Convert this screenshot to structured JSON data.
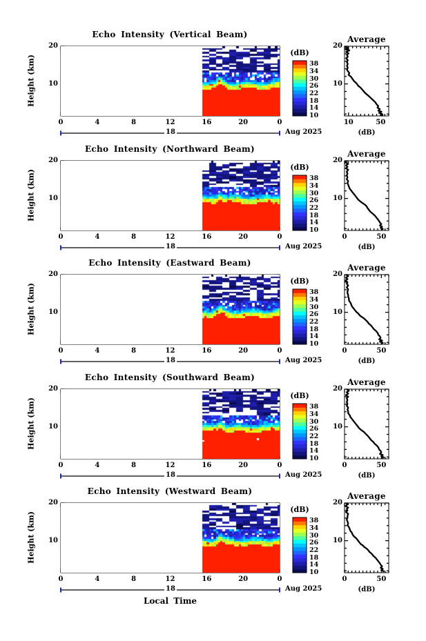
{
  "figure_bg": "#ffffff",
  "axis_color": "#000000",
  "date_bar_accent": "#2222cc",
  "shared": {
    "x_axis_label": "Local Time",
    "x_tick_labels": [
      "0",
      "4",
      "8",
      "12",
      "16",
      "20",
      "0"
    ],
    "x_tick_hours": [
      0,
      4,
      8,
      12,
      16,
      20,
      24
    ],
    "x_range_hours": [
      0,
      24
    ],
    "y_axis_label": "Height (km)",
    "y_tick_labels": [
      "20",
      "10"
    ],
    "y_range_km": [
      1.5,
      20
    ],
    "date_day_label": "18",
    "date_month_year": "Aug 2025",
    "colorbar": {
      "title": "(dB)",
      "tick_labels": [
        "38",
        "34",
        "30",
        "26",
        "22",
        "18",
        "14",
        "10"
      ],
      "tick_values": [
        38,
        34,
        30,
        26,
        22,
        18,
        14,
        10
      ],
      "range_db": [
        10,
        40
      ],
      "palette_bottom_to_top": [
        "#0a0a50",
        "#14147d",
        "#1e1eaa",
        "#2828d7",
        "#3232ff",
        "#1e64ff",
        "#0096ff",
        "#00c8ff",
        "#00ffff",
        "#50ff9b",
        "#a0ff50",
        "#e6ff1e",
        "#ffd200",
        "#ff7800",
        "#ff2000"
      ]
    },
    "average": {
      "title": "Average",
      "xlabel": "(dB)",
      "y_tick_labels": [
        "20",
        "10"
      ]
    }
  },
  "chart_data": [
    {
      "type": "heatmap",
      "title": "Echo Intensity (Vertical Beam)",
      "beam": "vertical",
      "heatmap_summary": {
        "no_data_before_hour": 15.5,
        "data_hours": [
          15.5,
          24
        ],
        "solid_red_below_km": 8.7,
        "red_boundary_bump": {
          "hour": 17.4,
          "peak_km": 10.0
        },
        "transition_band_km": [
          8.7,
          10.6
        ],
        "dark_speckle_band_km": [
          10.6,
          19.0
        ],
        "mostly_clear_above_km": 19.0,
        "min_db": 10,
        "max_db": 38
      },
      "average_profile": {
        "title": "Average",
        "xlabel": "(dB)",
        "x_range_db": [
          5,
          60
        ],
        "x_tick_values": [
          10,
          50
        ],
        "x_tick_labels": [
          "10",
          "50"
        ],
        "offscale_left_arrow_at_top": true,
        "points_db_km": [
          [
            4,
            20
          ],
          [
            9,
            19.6
          ],
          [
            6,
            19.2
          ],
          [
            11,
            18.9
          ],
          [
            7,
            18.5
          ],
          [
            10,
            18.1
          ],
          [
            8,
            17.7
          ],
          [
            9,
            17.2
          ],
          [
            7,
            16.8
          ],
          [
            9,
            16.3
          ],
          [
            8,
            15.8
          ],
          [
            9,
            15.3
          ],
          [
            8,
            14.8
          ],
          [
            9,
            14.3
          ],
          [
            8,
            13.8
          ],
          [
            9,
            13.4
          ],
          [
            11,
            12.9
          ],
          [
            10,
            12.4
          ],
          [
            13,
            11.9
          ],
          [
            15,
            11.3
          ],
          [
            17,
            10.7
          ],
          [
            20,
            10.1
          ],
          [
            22,
            9.5
          ],
          [
            25,
            9.0
          ],
          [
            27,
            8.5
          ],
          [
            29,
            8.0
          ],
          [
            31,
            7.5
          ],
          [
            34,
            7.0
          ],
          [
            37,
            6.4
          ],
          [
            40,
            5.8
          ],
          [
            43,
            5.2
          ],
          [
            45,
            4.6
          ],
          [
            47,
            4.1
          ],
          [
            46,
            3.7
          ],
          [
            49,
            3.3
          ],
          [
            47,
            2.9
          ],
          [
            51,
            2.6
          ],
          [
            48,
            2.3
          ],
          [
            52,
            2.0
          ],
          [
            50,
            1.8
          ],
          [
            53,
            1.6
          ]
        ]
      }
    },
    {
      "type": "heatmap",
      "title": "Echo Intensity (Northward Beam)",
      "beam": "northward",
      "heatmap_summary": {
        "no_data_before_hour": 15.5,
        "data_hours": [
          15.5,
          24
        ],
        "solid_red_below_km": 8.7,
        "red_boundary_bump": {
          "hour": 17.4,
          "peak_km": 9.9
        },
        "transition_band_km": [
          8.7,
          10.6
        ],
        "dark_speckle_band_km": [
          10.6,
          19.0
        ],
        "mostly_clear_above_km": 19.0,
        "min_db": 10,
        "max_db": 38
      },
      "average_profile": {
        "title": "Average",
        "xlabel": "(dB)",
        "x_range_db": [
          0,
          60
        ],
        "x_tick_values": [
          0,
          50
        ],
        "x_tick_labels": [
          "0",
          "50"
        ],
        "offscale_left_arrow_at_top": false,
        "points_db_km": [
          [
            3,
            20
          ],
          [
            1,
            19.6
          ],
          [
            5,
            19.2
          ],
          [
            2,
            18.8
          ],
          [
            4,
            18.4
          ],
          [
            2,
            18.0
          ],
          [
            5,
            17.6
          ],
          [
            3,
            17.1
          ],
          [
            4,
            16.6
          ],
          [
            3,
            16.1
          ],
          [
            4,
            15.6
          ],
          [
            3,
            15.1
          ],
          [
            5,
            14.6
          ],
          [
            4,
            14.1
          ],
          [
            5,
            13.6
          ],
          [
            6,
            13.1
          ],
          [
            7,
            12.6
          ],
          [
            9,
            12.1
          ],
          [
            11,
            11.6
          ],
          [
            13,
            11.1
          ],
          [
            15,
            10.6
          ],
          [
            17,
            10.1
          ],
          [
            19,
            9.6
          ],
          [
            22,
            9.1
          ],
          [
            25,
            8.7
          ],
          [
            28,
            8.3
          ],
          [
            30,
            7.9
          ],
          [
            31,
            7.5
          ],
          [
            33,
            7.0
          ],
          [
            35,
            6.5
          ],
          [
            38,
            6.0
          ],
          [
            41,
            5.5
          ],
          [
            43,
            5.0
          ],
          [
            45,
            4.5
          ],
          [
            47,
            4.0
          ],
          [
            48,
            3.6
          ],
          [
            50,
            3.2
          ],
          [
            48,
            2.8
          ],
          [
            51,
            2.5
          ],
          [
            49,
            2.2
          ],
          [
            52,
            1.9
          ],
          [
            50,
            1.7
          ]
        ]
      }
    },
    {
      "type": "heatmap",
      "title": "Echo Intensity (Eastward Beam)",
      "beam": "eastward",
      "heatmap_summary": {
        "no_data_before_hour": 15.5,
        "data_hours": [
          15.5,
          24
        ],
        "solid_red_below_km": 8.7,
        "red_boundary_bump": {
          "hour": 17.4,
          "peak_km": 9.9
        },
        "transition_band_km": [
          8.7,
          10.6
        ],
        "dark_speckle_band_km": [
          10.6,
          19.0
        ],
        "mostly_clear_above_km": 19.0,
        "min_db": 10,
        "max_db": 38
      },
      "average_profile": {
        "title": "Average",
        "xlabel": "(dB)",
        "x_range_db": [
          0,
          60
        ],
        "x_tick_values": [
          0,
          50
        ],
        "x_tick_labels": [
          "0",
          "50"
        ],
        "offscale_left_arrow_at_top": false,
        "points_db_km": [
          [
            2,
            20
          ],
          [
            5,
            19.6
          ],
          [
            2,
            19.2
          ],
          [
            4,
            18.8
          ],
          [
            1,
            18.4
          ],
          [
            4,
            18.0
          ],
          [
            3,
            17.6
          ],
          [
            5,
            17.1
          ],
          [
            3,
            16.6
          ],
          [
            5,
            16.1
          ],
          [
            4,
            15.6
          ],
          [
            4,
            15.1
          ],
          [
            5,
            14.6
          ],
          [
            5,
            14.1
          ],
          [
            6,
            13.6
          ],
          [
            6,
            13.1
          ],
          [
            8,
            12.6
          ],
          [
            9,
            12.1
          ],
          [
            10,
            11.6
          ],
          [
            12,
            11.1
          ],
          [
            14,
            10.6
          ],
          [
            16,
            10.1
          ],
          [
            19,
            9.6
          ],
          [
            21,
            9.1
          ],
          [
            24,
            8.7
          ],
          [
            27,
            8.3
          ],
          [
            29,
            7.9
          ],
          [
            31,
            7.5
          ],
          [
            33,
            7.0
          ],
          [
            36,
            6.5
          ],
          [
            38,
            6.0
          ],
          [
            40,
            5.5
          ],
          [
            43,
            5.0
          ],
          [
            45,
            4.5
          ],
          [
            46,
            4.0
          ],
          [
            48,
            3.6
          ],
          [
            49,
            3.2
          ],
          [
            47,
            2.8
          ],
          [
            51,
            2.5
          ],
          [
            48,
            2.2
          ],
          [
            52,
            1.9
          ],
          [
            50,
            1.7
          ]
        ]
      }
    },
    {
      "type": "heatmap",
      "title": "Echo Intensity (Southward Beam)",
      "beam": "southward",
      "heatmap_summary": {
        "no_data_before_hour": 15.5,
        "data_hours": [
          15.5,
          24
        ],
        "solid_red_below_km": 8.7,
        "red_boundary_bump": {
          "hour": 17.4,
          "peak_km": 9.9
        },
        "transition_band_km": [
          8.7,
          10.6
        ],
        "dark_speckle_band_km": [
          10.6,
          19.0
        ],
        "mostly_clear_above_km": 19.0,
        "min_db": 10,
        "max_db": 38
      },
      "average_profile": {
        "title": "Average",
        "xlabel": "(dB)",
        "x_range_db": [
          0,
          60
        ],
        "x_tick_values": [
          0,
          50
        ],
        "x_tick_labels": [
          "0",
          "50"
        ],
        "offscale_left_arrow_at_top": false,
        "points_db_km": [
          [
            3,
            20
          ],
          [
            6,
            19.6
          ],
          [
            3,
            19.2
          ],
          [
            5,
            18.8
          ],
          [
            2,
            18.4
          ],
          [
            5,
            18.0
          ],
          [
            3,
            17.6
          ],
          [
            4,
            17.1
          ],
          [
            3,
            16.6
          ],
          [
            4,
            16.1
          ],
          [
            3,
            15.6
          ],
          [
            5,
            15.1
          ],
          [
            4,
            14.6
          ],
          [
            5,
            14.1
          ],
          [
            5,
            13.6
          ],
          [
            7,
            13.1
          ],
          [
            8,
            12.6
          ],
          [
            10,
            12.1
          ],
          [
            12,
            11.6
          ],
          [
            14,
            11.1
          ],
          [
            16,
            10.6
          ],
          [
            18,
            10.1
          ],
          [
            20,
            9.6
          ],
          [
            23,
            9.1
          ],
          [
            26,
            8.7
          ],
          [
            28,
            8.3
          ],
          [
            30,
            7.9
          ],
          [
            32,
            7.5
          ],
          [
            34,
            7.0
          ],
          [
            36,
            6.5
          ],
          [
            39,
            6.0
          ],
          [
            41,
            5.5
          ],
          [
            44,
            5.0
          ],
          [
            46,
            4.5
          ],
          [
            47,
            4.0
          ],
          [
            49,
            3.6
          ],
          [
            50,
            3.2
          ],
          [
            48,
            2.8
          ],
          [
            52,
            2.5
          ],
          [
            50,
            2.2
          ],
          [
            53,
            1.9
          ],
          [
            51,
            1.7
          ]
        ]
      }
    },
    {
      "type": "heatmap",
      "title": "Echo Intensity (Westward Beam)",
      "beam": "westward",
      "heatmap_summary": {
        "no_data_before_hour": 15.5,
        "data_hours": [
          15.5,
          24
        ],
        "solid_red_below_km": 8.7,
        "red_boundary_bump": {
          "hour": 17.4,
          "peak_km": 9.9
        },
        "transition_band_km": [
          8.7,
          10.6
        ],
        "dark_speckle_band_km": [
          10.6,
          19.0
        ],
        "mostly_clear_above_km": 19.0,
        "min_db": 10,
        "max_db": 38
      },
      "average_profile": {
        "title": "Average",
        "xlabel": "(dB)",
        "x_range_db": [
          0,
          60
        ],
        "x_tick_values": [
          0,
          50
        ],
        "x_tick_labels": [
          "0",
          "50"
        ],
        "offscale_left_arrow_at_top": false,
        "points_db_km": [
          [
            2,
            20
          ],
          [
            4,
            19.6
          ],
          [
            1,
            19.2
          ],
          [
            5,
            18.8
          ],
          [
            3,
            18.4
          ],
          [
            4,
            18.0
          ],
          [
            2,
            17.6
          ],
          [
            5,
            17.1
          ],
          [
            4,
            16.6
          ],
          [
            4,
            16.1
          ],
          [
            3,
            15.6
          ],
          [
            4,
            15.1
          ],
          [
            5,
            14.6
          ],
          [
            4,
            14.1
          ],
          [
            6,
            13.6
          ],
          [
            7,
            13.1
          ],
          [
            8,
            12.6
          ],
          [
            10,
            12.1
          ],
          [
            11,
            11.6
          ],
          [
            13,
            11.1
          ],
          [
            16,
            10.6
          ],
          [
            18,
            10.1
          ],
          [
            20,
            9.6
          ],
          [
            22,
            9.1
          ],
          [
            25,
            8.7
          ],
          [
            27,
            8.3
          ],
          [
            30,
            7.9
          ],
          [
            32,
            7.5
          ],
          [
            34,
            7.0
          ],
          [
            37,
            6.5
          ],
          [
            39,
            6.0
          ],
          [
            42,
            5.5
          ],
          [
            44,
            5.0
          ],
          [
            46,
            4.5
          ],
          [
            48,
            4.0
          ],
          [
            49,
            3.6
          ],
          [
            51,
            3.2
          ],
          [
            49,
            2.8
          ],
          [
            52,
            2.5
          ],
          [
            50,
            2.2
          ],
          [
            53,
            1.9
          ],
          [
            52,
            1.7
          ]
        ]
      }
    }
  ]
}
